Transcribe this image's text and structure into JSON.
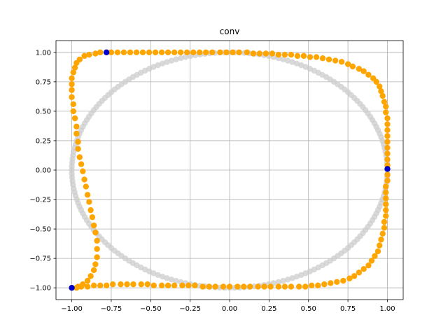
{
  "chart_data": {
    "type": "scatter",
    "title": "conv",
    "xlabel": "",
    "ylabel": "",
    "xlim": [
      -1.1,
      1.1
    ],
    "ylim": [
      -1.1,
      1.1
    ],
    "grid": true,
    "xticks": [
      -1.0,
      -0.75,
      -0.5,
      -0.25,
      0.0,
      0.25,
      0.5,
      0.75,
      1.0
    ],
    "yticks": [
      -1.0,
      -0.75,
      -0.5,
      -0.25,
      0.0,
      0.25,
      0.5,
      0.75,
      1.0
    ],
    "xtick_labels": [
      "−1.00",
      "−0.75",
      "−0.50",
      "−0.25",
      "0.00",
      "0.25",
      "0.50",
      "0.75",
      "1.00"
    ],
    "ytick_labels": [
      "−1.00",
      "−0.75",
      "−0.50",
      "−0.25",
      "0.00",
      "0.25",
      "0.50",
      "0.75",
      "1.00"
    ],
    "colors": {
      "circle": "#cccccc",
      "path": "#ffa500",
      "markers": "#0000cc"
    },
    "series": [
      {
        "kind": "reference-circle",
        "center": [
          0,
          0
        ],
        "radius": 1.0,
        "point_count": 200
      },
      {
        "kind": "orange-path",
        "points": [
          [
            -0.78,
            1.0
          ],
          [
            -0.75,
            1.0
          ],
          [
            -0.71,
            1.0
          ],
          [
            -0.67,
            1.0
          ],
          [
            -0.63,
            1.0
          ],
          [
            -0.59,
            1.0
          ],
          [
            -0.55,
            1.0
          ],
          [
            -0.51,
            1.0
          ],
          [
            -0.47,
            1.0
          ],
          [
            -0.43,
            1.0
          ],
          [
            -0.39,
            1.0
          ],
          [
            -0.35,
            1.0
          ],
          [
            -0.31,
            1.0
          ],
          [
            -0.27,
            1.0
          ],
          [
            -0.23,
            1.0
          ],
          [
            -0.19,
            1.0
          ],
          [
            -0.15,
            1.0
          ],
          [
            -0.11,
            1.0
          ],
          [
            -0.06,
            1.0
          ],
          [
            -0.02,
            1.0
          ],
          [
            0.02,
            1.0
          ],
          [
            0.06,
            1.0
          ],
          [
            0.11,
            1.0
          ],
          [
            0.15,
            0.99
          ],
          [
            0.19,
            0.99
          ],
          [
            0.23,
            0.99
          ],
          [
            0.27,
            0.99
          ],
          [
            0.31,
            0.98
          ],
          [
            0.35,
            0.98
          ],
          [
            0.39,
            0.98
          ],
          [
            0.43,
            0.97
          ],
          [
            0.47,
            0.97
          ],
          [
            0.51,
            0.96
          ],
          [
            0.55,
            0.96
          ],
          [
            0.59,
            0.95
          ],
          [
            0.63,
            0.94
          ],
          [
            0.67,
            0.93
          ],
          [
            0.71,
            0.92
          ],
          [
            0.75,
            0.9
          ],
          [
            0.78,
            0.88
          ],
          [
            0.82,
            0.86
          ],
          [
            0.85,
            0.84
          ],
          [
            0.88,
            0.81
          ],
          [
            0.91,
            0.78
          ],
          [
            0.93,
            0.75
          ],
          [
            0.95,
            0.71
          ],
          [
            0.96,
            0.67
          ],
          [
            0.97,
            0.63
          ],
          [
            0.98,
            0.58
          ],
          [
            0.99,
            0.54
          ],
          [
            0.99,
            0.49
          ],
          [
            1.0,
            0.44
          ],
          [
            1.0,
            0.39
          ],
          [
            1.0,
            0.34
          ],
          [
            1.0,
            0.29
          ],
          [
            1.0,
            0.24
          ],
          [
            1.0,
            0.19
          ],
          [
            1.0,
            0.14
          ],
          [
            1.0,
            0.09
          ],
          [
            1.0,
            0.04
          ],
          [
            1.0,
            0.01
          ],
          [
            1.0,
            -0.04
          ],
          [
            1.0,
            -0.09
          ],
          [
            0.99,
            -0.14
          ],
          [
            0.99,
            -0.19
          ],
          [
            0.99,
            -0.24
          ],
          [
            0.99,
            -0.29
          ],
          [
            0.99,
            -0.34
          ],
          [
            0.99,
            -0.39
          ],
          [
            0.98,
            -0.44
          ],
          [
            0.98,
            -0.49
          ],
          [
            0.97,
            -0.54
          ],
          [
            0.96,
            -0.59
          ],
          [
            0.95,
            -0.64
          ],
          [
            0.94,
            -0.69
          ],
          [
            0.92,
            -0.73
          ],
          [
            0.9,
            -0.77
          ],
          [
            0.88,
            -0.81
          ],
          [
            0.85,
            -0.84
          ],
          [
            0.82,
            -0.87
          ],
          [
            0.79,
            -0.9
          ],
          [
            0.76,
            -0.92
          ],
          [
            0.72,
            -0.94
          ],
          [
            0.68,
            -0.95
          ],
          [
            0.64,
            -0.96
          ],
          [
            0.6,
            -0.97
          ],
          [
            0.56,
            -0.98
          ],
          [
            0.52,
            -0.98
          ],
          [
            0.48,
            -0.99
          ],
          [
            0.44,
            -0.99
          ],
          [
            0.39,
            -0.99
          ],
          [
            0.35,
            -0.99
          ],
          [
            0.31,
            -0.99
          ],
          [
            0.26,
            -0.99
          ],
          [
            0.22,
            -0.99
          ],
          [
            0.18,
            -0.99
          ],
          [
            0.13,
            -0.99
          ],
          [
            0.09,
            -0.99
          ],
          [
            0.05,
            -0.99
          ],
          [
            0.0,
            -0.99
          ],
          [
            -0.04,
            -0.99
          ],
          [
            -0.09,
            -0.99
          ],
          [
            -0.13,
            -0.99
          ],
          [
            -0.17,
            -0.99
          ],
          [
            -0.22,
            -0.98
          ],
          [
            -0.26,
            -0.98
          ],
          [
            -0.3,
            -0.98
          ],
          [
            -0.35,
            -0.98
          ],
          [
            -0.39,
            -0.98
          ],
          [
            -0.43,
            -0.98
          ],
          [
            -0.48,
            -0.98
          ],
          [
            -0.52,
            -0.97
          ],
          [
            -0.56,
            -0.97
          ],
          [
            -0.61,
            -0.97
          ],
          [
            -0.65,
            -0.97
          ],
          [
            -0.69,
            -0.97
          ],
          [
            -0.74,
            -0.97
          ],
          [
            -0.78,
            -0.98
          ],
          [
            -0.82,
            -0.98
          ],
          [
            -0.86,
            -0.98
          ],
          [
            -0.9,
            -0.99
          ],
          [
            -0.94,
            -0.99
          ],
          [
            -0.97,
            -1.0
          ],
          [
            -1.0,
            -1.0
          ],
          [
            -0.96,
            -0.99
          ],
          [
            -0.93,
            -0.97
          ],
          [
            -0.9,
            -0.94
          ],
          [
            -0.88,
            -0.9
          ],
          [
            -0.86,
            -0.85
          ],
          [
            -0.85,
            -0.8
          ],
          [
            -0.84,
            -0.74
          ],
          [
            -0.84,
            -0.67
          ],
          [
            -0.84,
            -0.6
          ],
          [
            -0.85,
            -0.53
          ],
          [
            -0.86,
            -0.47
          ],
          [
            -0.87,
            -0.4
          ],
          [
            -0.88,
            -0.34
          ],
          [
            -0.89,
            -0.27
          ],
          [
            -0.9,
            -0.21
          ],
          [
            -0.91,
            -0.14
          ],
          [
            -0.92,
            -0.08
          ],
          [
            -0.93,
            -0.01
          ],
          [
            -0.94,
            0.05
          ],
          [
            -0.95,
            0.11
          ],
          [
            -0.96,
            0.18
          ],
          [
            -0.96,
            0.24
          ],
          [
            -0.97,
            0.31
          ],
          [
            -0.97,
            0.37
          ],
          [
            -0.98,
            0.44
          ],
          [
            -0.99,
            0.5
          ],
          [
            -0.99,
            0.56
          ],
          [
            -1.0,
            0.62
          ],
          [
            -1.0,
            0.68
          ],
          [
            -1.0,
            0.73
          ],
          [
            -1.0,
            0.78
          ],
          [
            -0.99,
            0.83
          ],
          [
            -0.98,
            0.87
          ],
          [
            -0.97,
            0.91
          ],
          [
            -0.95,
            0.94
          ],
          [
            -0.92,
            0.97
          ],
          [
            -0.89,
            0.98
          ],
          [
            -0.85,
            0.99
          ],
          [
            -0.82,
            1.0
          ]
        ]
      },
      {
        "kind": "markers",
        "points": [
          [
            -0.78,
            1.0
          ],
          [
            1.0,
            0.01
          ],
          [
            -1.0,
            -1.0
          ]
        ]
      }
    ]
  }
}
